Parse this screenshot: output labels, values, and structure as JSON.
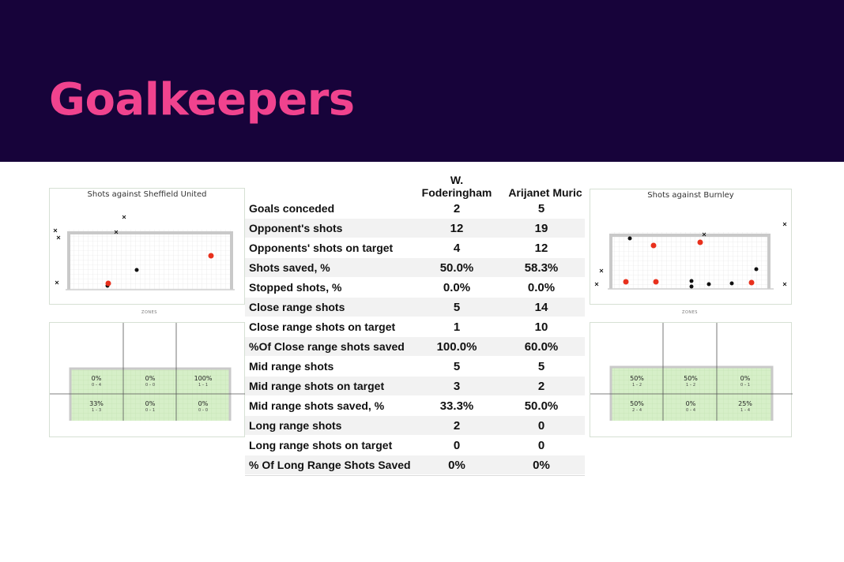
{
  "title": "Goalkeepers",
  "left_panel": {
    "shots_title": "Shots against Sheffield United",
    "zones_title": "ZONES",
    "zones": [
      {
        "pct": "0%",
        "frac": "0 – 4"
      },
      {
        "pct": "0%",
        "frac": "0 – 0"
      },
      {
        "pct": "100%",
        "frac": "1 – 1"
      },
      {
        "pct": "33%",
        "frac": "1 – 3"
      },
      {
        "pct": "0%",
        "frac": "0 – 1"
      },
      {
        "pct": "0%",
        "frac": "0 – 0"
      }
    ]
  },
  "right_panel": {
    "shots_title": "Shots against Burnley",
    "zones_title": "ZONES",
    "zones": [
      {
        "pct": "50%",
        "frac": "1 – 2"
      },
      {
        "pct": "50%",
        "frac": "1 – 2"
      },
      {
        "pct": "0%",
        "frac": "0 – 1"
      },
      {
        "pct": "50%",
        "frac": "2 – 4"
      },
      {
        "pct": "0%",
        "frac": "0 – 4"
      },
      {
        "pct": "25%",
        "frac": "1 – 4"
      }
    ]
  },
  "table": {
    "col1_line1": "W.",
    "col1_line2": "Foderingham",
    "col2": "Arijanet Muric",
    "rows": [
      {
        "label": "Goals conceded",
        "v1": "2",
        "v2": "5"
      },
      {
        "label": "Opponent's shots",
        "v1": "12",
        "v2": "19"
      },
      {
        "label": "Opponents' shots  on target",
        "v1": "4",
        "v2": "12"
      },
      {
        "label": "Shots saved, %",
        "v1": "50.0%",
        "v2": "58.3%"
      },
      {
        "label": "Stopped shots, %",
        "v1": "0.0%",
        "v2": "0.0%"
      },
      {
        "label": "Close range shots",
        "v1": "5",
        "v2": "14"
      },
      {
        "label": "Close range shots on target",
        "v1": "1",
        "v2": "10"
      },
      {
        "label": "%Of Close range shots saved",
        "v1": "100.0%",
        "v2": "60.0%"
      },
      {
        "label": "Mid range shots",
        "v1": "5",
        "v2": "5"
      },
      {
        "label": "Mid range shots on target",
        "v1": "3",
        "v2": "2"
      },
      {
        "label": "Mid range shots saved, %",
        "v1": "33.3%",
        "v2": "50.0%"
      },
      {
        "label": "Long range shots",
        "v1": "2",
        "v2": "0"
      },
      {
        "label": "Long range shots on target",
        "v1": "0",
        "v2": "0"
      },
      {
        "label": "% Of Long Range Shots Saved",
        "v1": "0%",
        "v2": "0%"
      }
    ]
  },
  "colors": {
    "header_bg": "#17033a",
    "title": "#f0438e",
    "goal_shot": "#e8301c",
    "save": "#111111",
    "zone_fill": "#d6efc8"
  }
}
